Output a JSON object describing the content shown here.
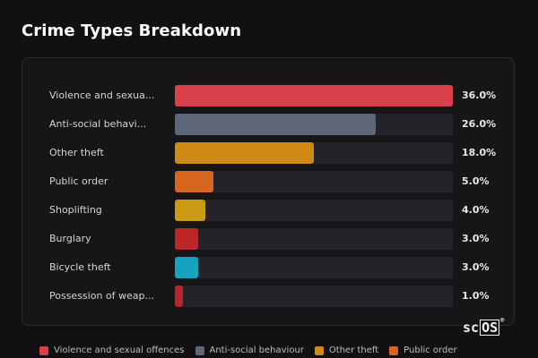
{
  "title": "Crime Types Breakdown",
  "logo_text": "scOS",
  "chart_data": {
    "type": "bar",
    "orientation": "horizontal",
    "title": "Crime Types Breakdown",
    "categories": [
      "Violence and sexua...",
      "Anti-social behavi...",
      "Other theft",
      "Public order",
      "Shoplifting",
      "Burglary",
      "Bicycle theft",
      "Possession of weap..."
    ],
    "values": [
      36.0,
      26.0,
      18.0,
      5.0,
      4.0,
      3.0,
      3.0,
      1.0
    ],
    "value_labels": [
      "36.0%",
      "26.0%",
      "18.0%",
      "5.0%",
      "4.0%",
      "3.0%",
      "3.0%",
      "1.0%"
    ],
    "colors": [
      "#d9414a",
      "#5d6778",
      "#cf8a16",
      "#d8651e",
      "#c99a12",
      "#bb2626",
      "#16a3bf",
      "#b8262a"
    ],
    "xlim": [
      0,
      36
    ],
    "legend": [
      {
        "label": "Violence and sexual offences",
        "color": "#d9414a"
      },
      {
        "label": "Anti-social behaviour",
        "color": "#5d6778"
      },
      {
        "label": "Other theft",
        "color": "#cf8a16"
      },
      {
        "label": "Public order",
        "color": "#d8651e"
      }
    ],
    "legend_position": "bottom",
    "grid": false
  }
}
